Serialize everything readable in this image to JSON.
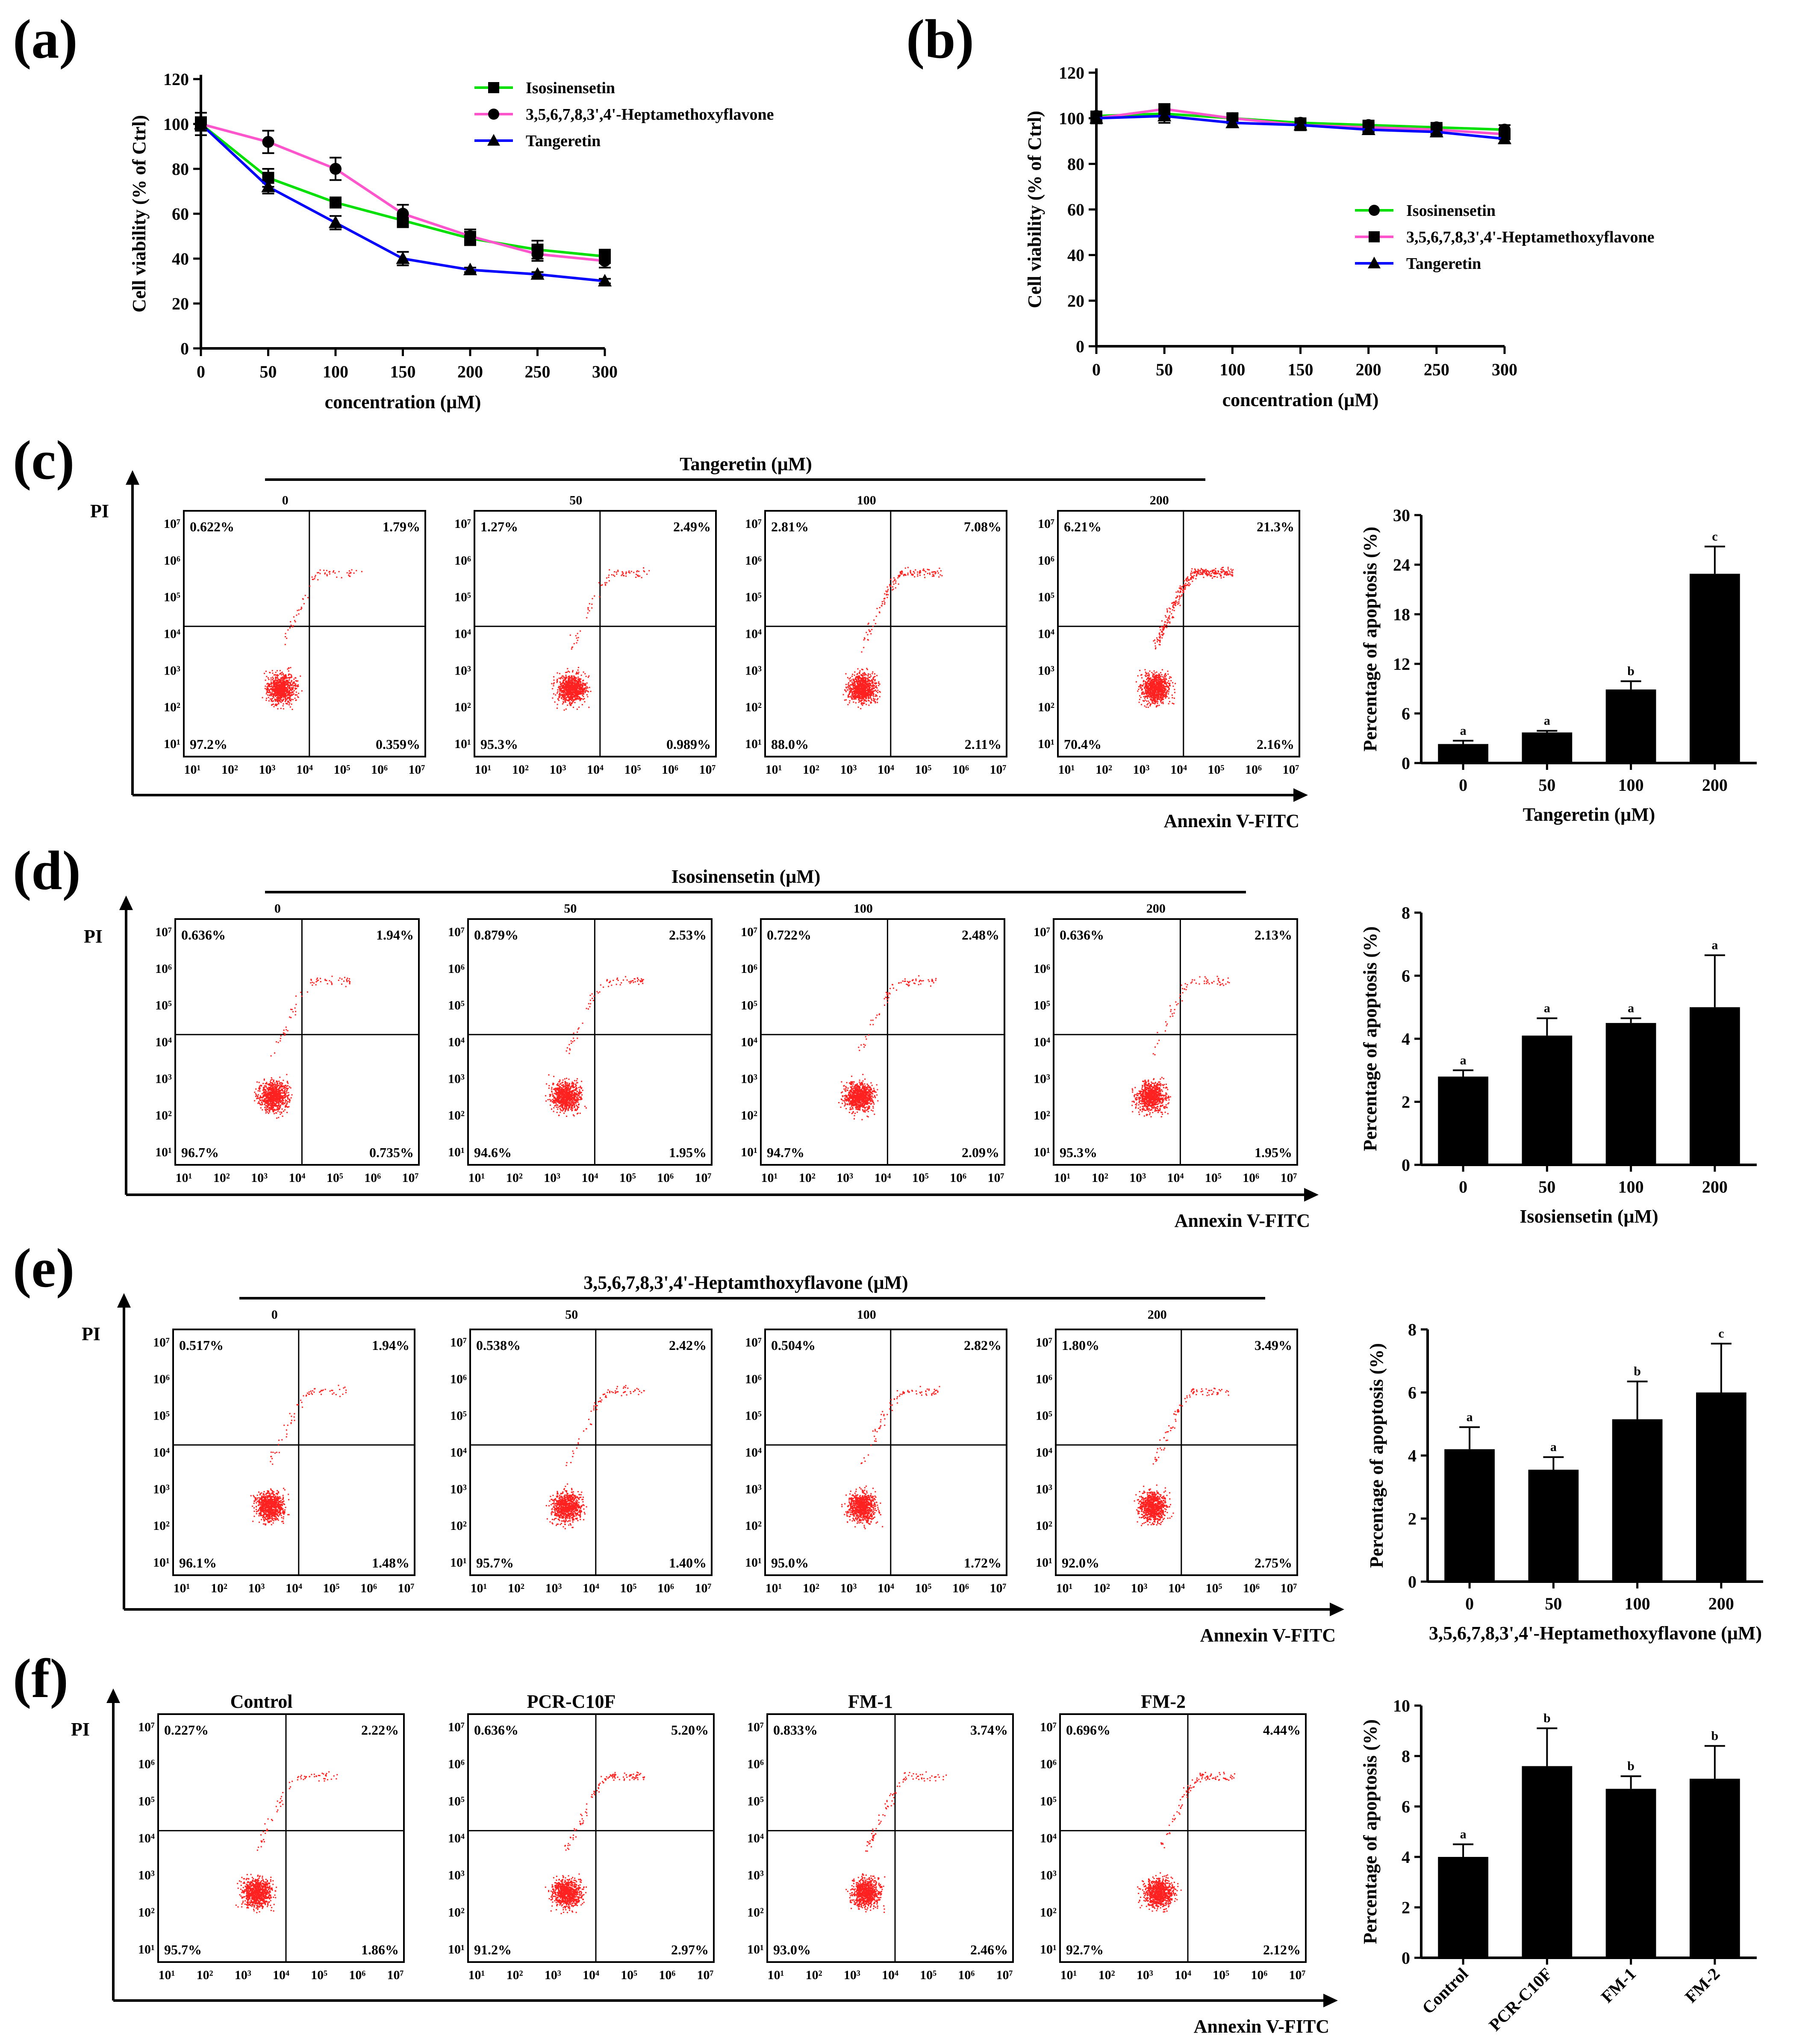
{
  "panels": {
    "a": {
      "label": "(a)"
    },
    "b": {
      "label": "(b)"
    },
    "c": {
      "label": "(c)",
      "group_title": "Tangeretin (μM)",
      "x_axis": "Annexin V-FITC",
      "y_axis": "PI"
    },
    "d": {
      "label": "(d)",
      "group_title": "Isosinensetin (μM)",
      "x_axis": "Annexin V-FITC",
      "y_axis": "PI"
    },
    "e": {
      "label": "(e)",
      "group_title": "3,5,6,7,8,3',4'-Heptamthoxyflavone (μM)",
      "x_axis": "Annexin V-FITC",
      "y_axis": "PI"
    },
    "f": {
      "label": "(f)",
      "group_title": "",
      "x_axis": "Annexin V-FITC",
      "y_axis": "PI"
    }
  },
  "flow_tick_labels": {
    "y": [
      "10⁷",
      "10⁶",
      "10⁵",
      "10⁴",
      "10³",
      "10²",
      "10¹"
    ],
    "x": [
      "10¹",
      "10²",
      "10³",
      "10⁴",
      "10⁵",
      "10⁶",
      "10⁷"
    ]
  },
  "flow_rows": [
    {
      "row": "c",
      "plots": [
        {
          "title": "0",
          "q_ul": "0.622%",
          "q_ur": "1.79%",
          "q_ll": "97.2%",
          "q_lr": "0.359%"
        },
        {
          "title": "50",
          "q_ul": "1.27%",
          "q_ur": "2.49%",
          "q_ll": "95.3%",
          "q_lr": "0.989%"
        },
        {
          "title": "100",
          "q_ul": "2.81%",
          "q_ur": "7.08%",
          "q_ll": "88.0%",
          "q_lr": "2.11%"
        },
        {
          "title": "200",
          "q_ul": "6.21%",
          "q_ur": "21.3%",
          "q_ll": "70.4%",
          "q_lr": "2.16%"
        }
      ]
    },
    {
      "row": "d",
      "plots": [
        {
          "title": "0",
          "q_ul": "0.636%",
          "q_ur": "1.94%",
          "q_ll": "96.7%",
          "q_lr": "0.735%"
        },
        {
          "title": "50",
          "q_ul": "0.879%",
          "q_ur": "2.53%",
          "q_ll": "94.6%",
          "q_lr": "1.95%"
        },
        {
          "title": "100",
          "q_ul": "0.722%",
          "q_ur": "2.48%",
          "q_ll": "94.7%",
          "q_lr": "2.09%"
        },
        {
          "title": "200",
          "q_ul": "0.636%",
          "q_ur": "2.13%",
          "q_ll": "95.3%",
          "q_lr": "1.95%"
        }
      ]
    },
    {
      "row": "e",
      "plots": [
        {
          "title": "0",
          "q_ul": "0.517%",
          "q_ur": "1.94%",
          "q_ll": "96.1%",
          "q_lr": "1.48%"
        },
        {
          "title": "50",
          "q_ul": "0.538%",
          "q_ur": "2.42%",
          "q_ll": "95.7%",
          "q_lr": "1.40%"
        },
        {
          "title": "100",
          "q_ul": "0.504%",
          "q_ur": "2.82%",
          "q_ll": "95.0%",
          "q_lr": "1.72%"
        },
        {
          "title": "200",
          "q_ul": "1.80%",
          "q_ur": "3.49%",
          "q_ll": "92.0%",
          "q_lr": "2.75%"
        }
      ]
    },
    {
      "row": "f",
      "plots": [
        {
          "title": "Control",
          "q_ul": "0.227%",
          "q_ur": "2.22%",
          "q_ll": "95.7%",
          "q_lr": "1.86%"
        },
        {
          "title": "PCR-C10F",
          "q_ul": "0.636%",
          "q_ur": "5.20%",
          "q_ll": "91.2%",
          "q_lr": "2.97%"
        },
        {
          "title": "FM-1",
          "q_ul": "0.833%",
          "q_ur": "3.74%",
          "q_ll": "93.0%",
          "q_lr": "2.46%"
        },
        {
          "title": "FM-2",
          "q_ul": "0.696%",
          "q_ur": "4.44%",
          "q_ll": "92.7%",
          "q_lr": "2.12%"
        }
      ]
    }
  ],
  "chart_data": [
    {
      "id": "a",
      "type": "line",
      "xlabel": "concentration (μM)",
      "ylabel": "Cell viability (% of Ctrl)",
      "xlim": [
        0,
        300
      ],
      "ylim": [
        0,
        120
      ],
      "xticks": [
        0,
        50,
        100,
        150,
        200,
        250,
        300
      ],
      "yticks": [
        0,
        20,
        40,
        60,
        80,
        100,
        120
      ],
      "x": [
        0,
        50,
        100,
        150,
        200,
        250,
        300
      ],
      "series": [
        {
          "name": "Isosinensetin",
          "marker": "square",
          "color": "#00e000",
          "values": [
            100,
            76,
            65,
            57,
            49,
            44,
            41
          ],
          "errors": [
            3,
            4,
            2,
            3,
            3,
            4,
            3
          ]
        },
        {
          "name": "3,5,6,7,8,3',4'-Heptamethoxyflavone",
          "marker": "circle",
          "color": "#ff55cc",
          "values": [
            100,
            92,
            80,
            60,
            50,
            42,
            39
          ],
          "errors": [
            5,
            5,
            5,
            4,
            3,
            3,
            3
          ]
        },
        {
          "name": "Tangeretin",
          "marker": "triangle",
          "color": "#0000ff",
          "values": [
            100,
            72,
            56,
            40,
            35,
            33,
            30
          ],
          "errors": [
            3,
            3,
            3,
            3,
            1,
            1,
            1
          ]
        }
      ]
    },
    {
      "id": "b",
      "type": "line",
      "xlabel": "concentration (μM)",
      "ylabel": "Cell viability (% of Ctrl)",
      "xlim": [
        0,
        300
      ],
      "ylim": [
        0,
        120
      ],
      "xticks": [
        0,
        50,
        100,
        150,
        200,
        250,
        300
      ],
      "yticks": [
        0,
        20,
        40,
        60,
        80,
        100,
        120
      ],
      "x": [
        0,
        50,
        100,
        150,
        200,
        250,
        300
      ],
      "series": [
        {
          "name": "Isosinensetin",
          "marker": "circle",
          "color": "#00e000",
          "values": [
            101,
            102,
            100,
            98,
            97,
            96,
            95
          ],
          "errors": [
            2,
            2,
            2,
            2,
            2,
            2,
            2
          ]
        },
        {
          "name": "3,5,6,7,8,3',4'-Heptamethoxyflavone",
          "marker": "square",
          "color": "#ff55cc",
          "values": [
            100,
            104,
            100,
            97,
            96,
            95,
            93
          ],
          "errors": [
            2,
            2,
            2,
            2,
            2,
            2,
            2
          ]
        },
        {
          "name": "Tangeretin",
          "marker": "triangle",
          "color": "#0000ff",
          "values": [
            100,
            101,
            98,
            97,
            95,
            94,
            91
          ],
          "errors": [
            2,
            3,
            2,
            2,
            2,
            2,
            2
          ]
        }
      ]
    },
    {
      "id": "c",
      "type": "bar",
      "categories": [
        "0",
        "50",
        "100",
        "200"
      ],
      "values": [
        2.3,
        3.7,
        8.9,
        22.9
      ],
      "errors": [
        0.4,
        0.2,
        1.0,
        3.3
      ],
      "letters": [
        "a",
        "a",
        "b",
        "c"
      ],
      "xlabel": "Tangeretin (μM)",
      "ylabel": "Percentage of apoptosis (%)",
      "ylim": [
        0,
        30
      ],
      "yticks": [
        0,
        6,
        12,
        18,
        24,
        30
      ]
    },
    {
      "id": "d",
      "type": "bar",
      "categories": [
        "0",
        "50",
        "100",
        "200"
      ],
      "values": [
        2.8,
        4.1,
        4.5,
        5.0
      ],
      "errors": [
        0.2,
        0.55,
        0.15,
        1.65
      ],
      "letters": [
        "a",
        "a",
        "a",
        "a"
      ],
      "xlabel": "Isosiensetin (μM)",
      "ylabel": "Percentage of apoptosis (%)",
      "ylim": [
        0,
        8
      ],
      "yticks": [
        0,
        2,
        4,
        6,
        8
      ]
    },
    {
      "id": "e",
      "type": "bar",
      "categories": [
        "0",
        "50",
        "100",
        "200"
      ],
      "values": [
        4.2,
        3.55,
        5.15,
        6.0
      ],
      "errors": [
        0.7,
        0.4,
        1.2,
        1.55
      ],
      "letters": [
        "a",
        "a",
        "b",
        "c"
      ],
      "xlabel": "3,5,6,7,8,3',4'-Heptamethoxyflavone (μM)",
      "ylabel": "Percentage of apoptosis (%)",
      "ylim": [
        0,
        8
      ],
      "yticks": [
        0,
        2,
        4,
        6,
        8
      ]
    },
    {
      "id": "f",
      "type": "bar",
      "categories": [
        "Control",
        "PCR-C10F",
        "FM-1",
        "FM-2"
      ],
      "values": [
        4.0,
        7.6,
        6.7,
        7.1
      ],
      "errors": [
        0.5,
        1.5,
        0.5,
        1.3
      ],
      "letters": [
        "a",
        "b",
        "b",
        "b"
      ],
      "xlabel": "",
      "ylabel": "Percentage of apoptosis (%)",
      "ylim": [
        0,
        10
      ],
      "yticks": [
        0,
        2,
        4,
        6,
        8,
        10
      ]
    }
  ]
}
